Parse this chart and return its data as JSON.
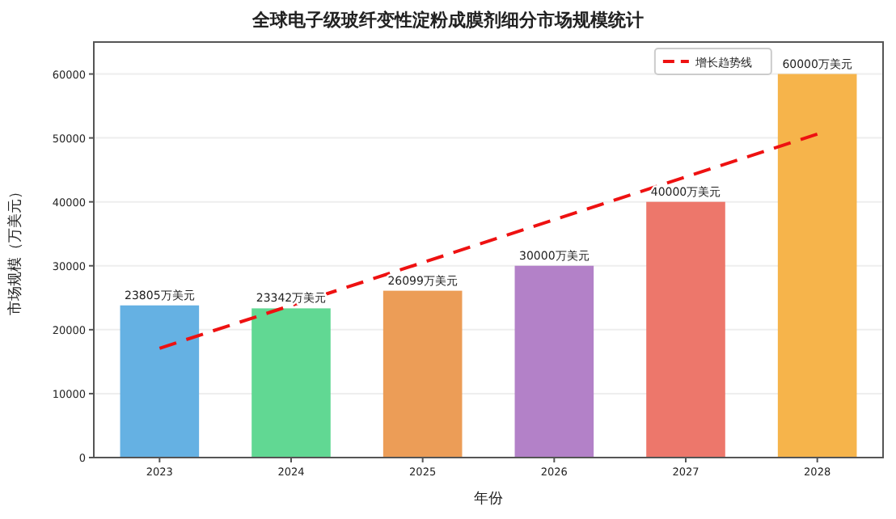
{
  "chart_data": {
    "type": "bar",
    "title": "全球电子级玻纤变性淀粉成膜剂细分市场规模统计",
    "xlabel": "年份",
    "ylabel": "市场规模（万美元）",
    "categories": [
      "2023",
      "2024",
      "2025",
      "2026",
      "2027",
      "2028"
    ],
    "series": [
      {
        "values": [
          23805,
          23342,
          26099,
          30000,
          40000,
          60000
        ],
        "colors": [
          "#5dade2",
          "#58d68d",
          "#eb984e",
          "#af7ac5",
          "#ec7063",
          "#f5b041"
        ],
        "value_labels": [
          "23805万美元",
          "23342万美元",
          "26099万美元",
          "30000万美元",
          "40000万美元",
          "60000万美元"
        ]
      },
      {
        "type": "line",
        "name": "增长趋势线",
        "color": "#ee1111",
        "line_style": "dashed",
        "values": [
          17100,
          23800,
          30500,
          37200,
          43900,
          50600
        ]
      }
    ],
    "ylim": [
      0,
      65000
    ],
    "yticks": [
      0,
      10000,
      20000,
      30000,
      40000,
      50000,
      60000
    ],
    "grid": "y",
    "legend": "top right"
  }
}
